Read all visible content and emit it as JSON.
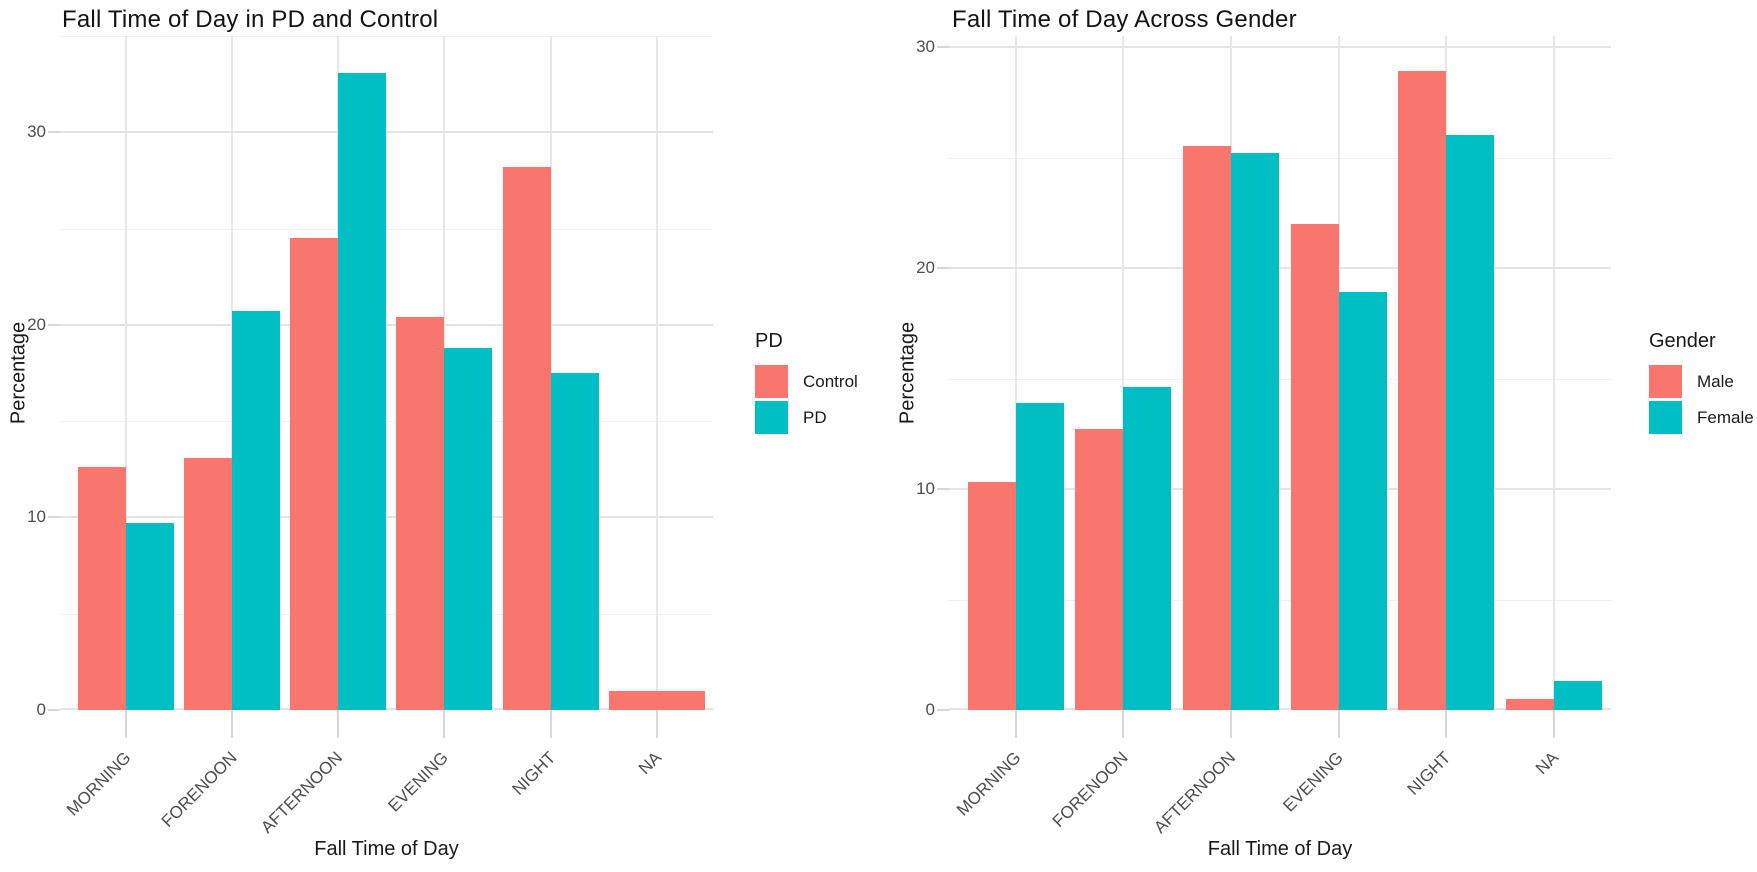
{
  "figure": {
    "background": "#FFFFFF",
    "colors": {
      "bar_red": "#F8766D",
      "bar_teal": "#00BFC4",
      "grid_major": "#E3E3E3",
      "grid_minor": "#F0F0F0",
      "grid_vertical": "#E7E7E7",
      "tick_mark": "#D8D8D8",
      "axis_text": "#4D4D4D",
      "title_text": "#131313"
    }
  },
  "chart_data": [
    {
      "type": "bar",
      "title": "Fall Time of Day in PD and Control",
      "xlabel": "Fall Time of Day",
      "ylabel": "Percentage",
      "categories": [
        "MORNING",
        "FORENOON",
        "AFTERNOON",
        "EVENING",
        "NIGHT",
        "NA"
      ],
      "series": [
        {
          "name": "Control",
          "color": "#F8766D",
          "values": [
            12.6,
            13.1,
            24.5,
            20.4,
            28.2,
            1.0
          ]
        },
        {
          "name": "PD",
          "color": "#00BFC4",
          "values": [
            9.7,
            20.7,
            33.1,
            18.8,
            17.5,
            null
          ]
        }
      ],
      "legend_title": "PD",
      "legend_position": "right",
      "grid": true,
      "ylim": [
        0,
        35
      ],
      "y_major_ticks": [
        0,
        10,
        20,
        30
      ],
      "y_minor_ticks": [
        5,
        15,
        25,
        35
      ]
    },
    {
      "type": "bar",
      "title": "Fall Time of Day Across Gender",
      "xlabel": "Fall Time of Day",
      "ylabel": "Percentage",
      "categories": [
        "MORNING",
        "FORENOON",
        "AFTERNOON",
        "EVENING",
        "NIGHT",
        "NA"
      ],
      "series": [
        {
          "name": "Male",
          "color": "#F8766D",
          "values": [
            10.3,
            12.7,
            25.5,
            22.0,
            28.9,
            0.5
          ]
        },
        {
          "name": "Female",
          "color": "#00BFC4",
          "values": [
            13.9,
            14.6,
            25.2,
            18.9,
            26.0,
            1.3
          ]
        }
      ],
      "legend_title": "Gender",
      "legend_position": "right",
      "grid": true,
      "ylim": [
        0,
        30.5
      ],
      "y_major_ticks": [
        0,
        10,
        20,
        30
      ],
      "y_minor_ticks": [
        5,
        15,
        25
      ]
    }
  ]
}
